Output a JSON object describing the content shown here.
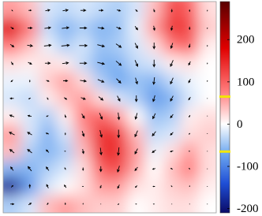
{
  "chart_data": {
    "type": "heatmap-quiver",
    "clim": [
      -210,
      290
    ],
    "colorbar_ticks": [
      200,
      100,
      0,
      -100,
      -200
    ],
    "thresholds": [
      65,
      -65
    ],
    "threshold_color": "#f2e600",
    "colormap": [
      {
        "value": -210,
        "color": "#0a0a66"
      },
      {
        "value": -140,
        "color": "#1f4fd6"
      },
      {
        "value": -70,
        "color": "#6ea8f0"
      },
      {
        "value": 0,
        "color": "#ffffff"
      },
      {
        "value": 80,
        "color": "#ff7a7a"
      },
      {
        "value": 180,
        "color": "#e00000"
      },
      {
        "value": 290,
        "color": "#5a0000"
      }
    ],
    "field": [
      [
        60,
        40,
        -20,
        -30,
        -20,
        -30,
        -40,
        -20,
        40,
        120,
        100,
        20
      ],
      [
        180,
        80,
        -30,
        -60,
        -40,
        -60,
        -50,
        -10,
        60,
        140,
        120,
        30
      ],
      [
        80,
        40,
        -10,
        -40,
        -20,
        -50,
        -40,
        -20,
        20,
        80,
        100,
        10
      ],
      [
        20,
        10,
        20,
        10,
        -30,
        -60,
        -60,
        -30,
        -20,
        10,
        20,
        0
      ],
      [
        -10,
        -10,
        30,
        60,
        20,
        -40,
        -70,
        -50,
        -60,
        -30,
        -10,
        0
      ],
      [
        -20,
        -30,
        10,
        40,
        60,
        20,
        -20,
        -40,
        -80,
        -60,
        -20,
        0
      ],
      [
        10,
        -20,
        -40,
        10,
        80,
        100,
        60,
        0,
        -50,
        -40,
        10,
        20
      ],
      [
        60,
        -20,
        -60,
        -20,
        60,
        140,
        130,
        40,
        -30,
        -20,
        20,
        30
      ],
      [
        40,
        -40,
        -60,
        -40,
        40,
        140,
        140,
        60,
        -10,
        20,
        60,
        20
      ],
      [
        -60,
        -60,
        -40,
        -20,
        20,
        100,
        120,
        50,
        0,
        40,
        80,
        20
      ],
      [
        -180,
        -80,
        -20,
        0,
        20,
        60,
        60,
        20,
        10,
        30,
        40,
        10
      ],
      [
        -40,
        -20,
        40,
        60,
        40,
        30,
        30,
        0,
        10,
        20,
        20,
        0
      ]
    ],
    "arrows": {
      "u": [
        [
          0.1,
          0.3,
          0.5,
          0.6,
          0.6,
          0.5,
          0.4,
          0.2,
          0.1,
          0.0,
          0.0,
          0.0
        ],
        [
          0.3,
          0.5,
          0.7,
          0.8,
          0.8,
          0.7,
          0.5,
          0.3,
          0.1,
          -0.1,
          0.0,
          0.0
        ],
        [
          0.4,
          0.6,
          0.8,
          0.9,
          0.9,
          0.8,
          0.6,
          0.3,
          0.0,
          -0.2,
          -0.1,
          0.0
        ],
        [
          0.2,
          0.4,
          0.6,
          0.7,
          0.8,
          0.8,
          0.6,
          0.3,
          0.0,
          -0.3,
          -0.2,
          0.0
        ],
        [
          -0.2,
          0.0,
          0.3,
          0.5,
          0.7,
          0.7,
          0.5,
          0.2,
          -0.1,
          -0.3,
          -0.2,
          0.0
        ],
        [
          -0.4,
          -0.2,
          0.1,
          0.3,
          0.5,
          0.5,
          0.3,
          0.0,
          -0.2,
          -0.3,
          -0.2,
          0.0
        ],
        [
          -0.5,
          -0.4,
          -0.2,
          0.1,
          0.3,
          0.3,
          0.1,
          -0.2,
          -0.3,
          -0.3,
          -0.1,
          0.0
        ],
        [
          -0.6,
          -0.5,
          -0.3,
          0.0,
          0.2,
          0.2,
          0.0,
          -0.3,
          -0.4,
          -0.3,
          -0.1,
          0.0
        ],
        [
          -0.5,
          -0.5,
          -0.3,
          -0.1,
          0.1,
          0.1,
          -0.1,
          -0.3,
          -0.4,
          -0.3,
          -0.1,
          0.0
        ],
        [
          -0.3,
          -0.4,
          -0.3,
          -0.1,
          0.0,
          0.0,
          -0.2,
          -0.3,
          -0.3,
          -0.2,
          -0.1,
          0.0
        ],
        [
          0.2,
          0.0,
          -0.2,
          -0.2,
          -0.1,
          -0.1,
          -0.2,
          -0.2,
          -0.2,
          -0.1,
          0.0,
          0.0
        ],
        [
          0.4,
          0.3,
          0.1,
          0.0,
          0.0,
          0.0,
          -0.1,
          -0.1,
          -0.1,
          0.0,
          0.0,
          0.0
        ]
      ],
      "v": [
        [
          -0.1,
          0.0,
          0.1,
          0.1,
          0.0,
          0.0,
          -0.1,
          -0.2,
          -0.3,
          -0.3,
          -0.2,
          -0.1
        ],
        [
          -0.2,
          0.0,
          0.1,
          0.1,
          0.0,
          -0.1,
          -0.2,
          -0.4,
          -0.5,
          -0.5,
          -0.3,
          -0.1
        ],
        [
          -0.3,
          -0.1,
          0.1,
          0.1,
          0.0,
          -0.2,
          -0.4,
          -0.6,
          -0.7,
          -0.6,
          -0.4,
          -0.1
        ],
        [
          -0.3,
          -0.2,
          0.0,
          0.1,
          0.0,
          -0.2,
          -0.5,
          -0.7,
          -0.8,
          -0.7,
          -0.4,
          -0.1
        ],
        [
          -0.2,
          -0.2,
          -0.1,
          0.0,
          -0.1,
          -0.3,
          -0.5,
          -0.7,
          -0.8,
          -0.7,
          -0.4,
          -0.1
        ],
        [
          0.0,
          -0.1,
          -0.2,
          -0.2,
          -0.2,
          -0.4,
          -0.6,
          -0.7,
          -0.7,
          -0.6,
          -0.3,
          0.0
        ],
        [
          0.2,
          0.1,
          -0.1,
          -0.3,
          -0.5,
          -0.7,
          -0.8,
          -0.7,
          -0.6,
          -0.4,
          -0.2,
          0.0
        ],
        [
          0.3,
          0.3,
          0.1,
          -0.2,
          -0.6,
          -0.8,
          -0.9,
          -0.7,
          -0.5,
          -0.3,
          -0.1,
          0.0
        ],
        [
          0.4,
          0.4,
          0.3,
          0.0,
          -0.5,
          -0.8,
          -0.9,
          -0.6,
          -0.3,
          -0.1,
          0.0,
          0.0
        ],
        [
          0.4,
          0.5,
          0.4,
          0.2,
          -0.3,
          -0.6,
          -0.7,
          -0.4,
          -0.1,
          0.1,
          0.1,
          0.0
        ],
        [
          0.2,
          0.4,
          0.4,
          0.3,
          0.0,
          -0.3,
          -0.4,
          -0.2,
          0.0,
          0.1,
          0.1,
          0.0
        ],
        [
          0.0,
          0.2,
          0.2,
          0.2,
          0.1,
          0.0,
          -0.1,
          0.0,
          0.0,
          0.0,
          0.0,
          0.0
        ]
      ]
    }
  }
}
